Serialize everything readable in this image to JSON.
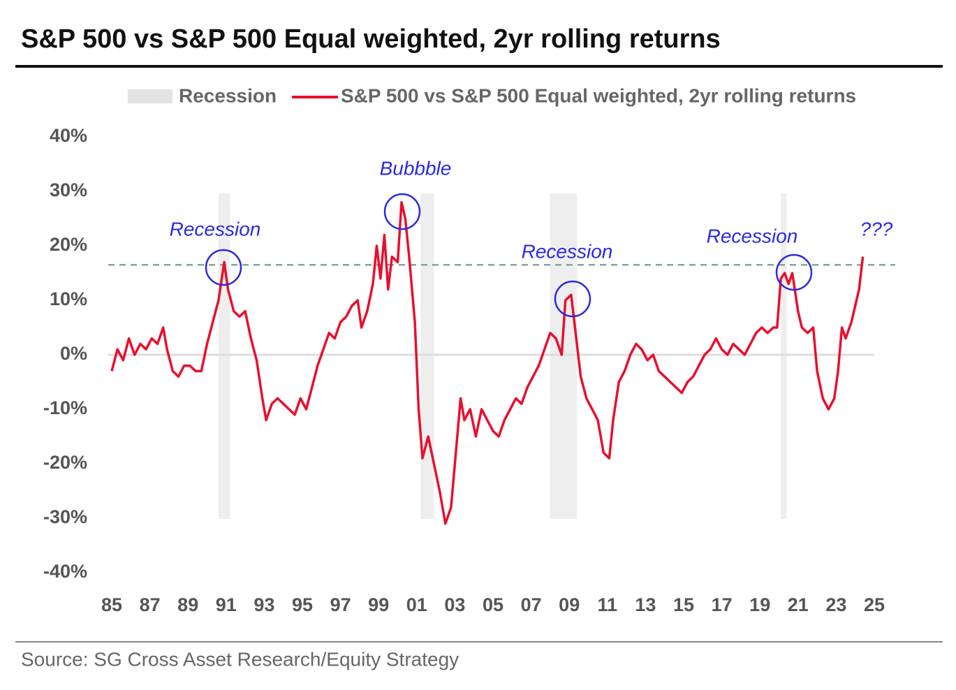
{
  "chart_data": {
    "type": "line",
    "title": "S&P 500 vs S&P 500 Equal weighted, 2yr rolling returns",
    "source": "Source: SG Cross Asset Research/Equity Strategy",
    "recession_label": "Recession",
    "recession_color": "#e3e3e3",
    "recessions": [
      [
        1990.6,
        1991.2
      ],
      [
        2001.2,
        2001.9
      ],
      [
        2008.0,
        2009.4
      ],
      [
        2020.1,
        2020.4
      ]
    ],
    "reference_line": 16.5,
    "reference_color": "#7fa79a",
    "annotations": [
      "Recession",
      "Bubbble",
      "Recession",
      "Recession",
      "???"
    ],
    "annotation_color": "#2a2ae0",
    "xlim": [
      1985,
      2025
    ],
    "ylim": [
      -40,
      40
    ],
    "xticks": [
      {
        "value": 1985,
        "label": "85"
      },
      {
        "value": 1987,
        "label": "87"
      },
      {
        "value": 1989,
        "label": "89"
      },
      {
        "value": 1991,
        "label": "91"
      },
      {
        "value": 1993,
        "label": "93"
      },
      {
        "value": 1995,
        "label": "95"
      },
      {
        "value": 1997,
        "label": "97"
      },
      {
        "value": 1999,
        "label": "99"
      },
      {
        "value": 2001,
        "label": "01"
      },
      {
        "value": 2003,
        "label": "03"
      },
      {
        "value": 2005,
        "label": "05"
      },
      {
        "value": 2007,
        "label": "07"
      },
      {
        "value": 2009,
        "label": "09"
      },
      {
        "value": 2011,
        "label": "11"
      },
      {
        "value": 2013,
        "label": "13"
      },
      {
        "value": 2015,
        "label": "15"
      },
      {
        "value": 2017,
        "label": "17"
      },
      {
        "value": 2019,
        "label": "19"
      },
      {
        "value": 2021,
        "label": "21"
      },
      {
        "value": 2023,
        "label": "23"
      },
      {
        "value": 2025,
        "label": "25"
      }
    ],
    "yticks": [
      {
        "value": 40,
        "label": "40%"
      },
      {
        "value": 30,
        "label": "30%"
      },
      {
        "value": 20,
        "label": "20%"
      },
      {
        "value": 10,
        "label": "10%"
      },
      {
        "value": 0,
        "label": "0%"
      },
      {
        "value": -10,
        "label": "-10%"
      },
      {
        "value": -20,
        "label": "-20%"
      },
      {
        "value": -30,
        "label": "-30%"
      },
      {
        "value": -40,
        "label": "-40%"
      }
    ],
    "series": [
      {
        "name": "S&P 500 vs S&P 500 Equal weighted, 2yr rolling returns",
        "color": "#e8102e",
        "x": [
          1985.0,
          1985.3,
          1985.6,
          1985.9,
          1986.2,
          1986.5,
          1986.8,
          1987.1,
          1987.4,
          1987.7,
          1987.9,
          1988.2,
          1988.5,
          1988.8,
          1989.1,
          1989.4,
          1989.7,
          1990.0,
          1990.3,
          1990.6,
          1990.9,
          1991.1,
          1991.4,
          1991.7,
          1992.0,
          1992.3,
          1992.6,
          1992.9,
          1993.1,
          1993.4,
          1993.7,
          1994.0,
          1994.3,
          1994.6,
          1994.9,
          1995.2,
          1995.5,
          1995.8,
          1996.1,
          1996.4,
          1996.7,
          1997.0,
          1997.3,
          1997.6,
          1997.9,
          1998.1,
          1998.4,
          1998.7,
          1998.9,
          1999.1,
          1999.3,
          1999.5,
          1999.7,
          2000.0,
          2000.2,
          2000.4,
          2000.6,
          2000.9,
          2001.1,
          2001.3,
          2001.6,
          2001.9,
          2002.2,
          2002.5,
          2002.8,
          2003.0,
          2003.3,
          2003.5,
          2003.8,
          2004.1,
          2004.4,
          2004.7,
          2005.0,
          2005.3,
          2005.6,
          2005.9,
          2006.2,
          2006.5,
          2006.8,
          2007.1,
          2007.4,
          2007.7,
          2008.0,
          2008.3,
          2008.6,
          2008.8,
          2009.1,
          2009.3,
          2009.6,
          2009.9,
          2010.2,
          2010.5,
          2010.8,
          2011.1,
          2011.3,
          2011.6,
          2011.9,
          2012.2,
          2012.5,
          2012.8,
          2013.1,
          2013.4,
          2013.7,
          2014.0,
          2014.3,
          2014.6,
          2014.9,
          2015.2,
          2015.5,
          2015.8,
          2016.1,
          2016.4,
          2016.7,
          2017.0,
          2017.3,
          2017.6,
          2017.9,
          2018.2,
          2018.5,
          2018.8,
          2019.1,
          2019.4,
          2019.7,
          2019.9,
          2020.1,
          2020.3,
          2020.5,
          2020.7,
          2021.0,
          2021.2,
          2021.5,
          2021.8,
          2022.0,
          2022.3,
          2022.6,
          2022.9,
          2023.1,
          2023.3,
          2023.5,
          2023.8,
          2024.0,
          2024.2,
          2024.4
        ],
        "values": [
          -3,
          1,
          -1,
          3,
          0,
          2,
          1,
          3,
          2,
          5,
          1,
          -3,
          -4,
          -2,
          -2,
          -3,
          -3,
          2,
          6,
          10,
          17,
          12,
          8,
          7,
          8,
          3,
          -1,
          -8,
          -12,
          -9,
          -8,
          -9,
          -10,
          -11,
          -8,
          -10,
          -6,
          -2,
          1,
          4,
          3,
          6,
          7,
          9,
          10,
          5,
          8,
          13,
          20,
          14,
          22,
          12,
          18,
          17,
          28,
          25,
          18,
          6,
          -10,
          -19,
          -15,
          -20,
          -25,
          -31,
          -28,
          -20,
          -8,
          -12,
          -10,
          -15,
          -10,
          -12,
          -14,
          -15,
          -12,
          -10,
          -8,
          -9,
          -6,
          -4,
          -2,
          1,
          4,
          3,
          0,
          10,
          11,
          5,
          -4,
          -8,
          -10,
          -12,
          -18,
          -19,
          -12,
          -5,
          -3,
          0,
          2,
          1,
          -1,
          0,
          -3,
          -4,
          -5,
          -6,
          -7,
          -5,
          -4,
          -2,
          0,
          1,
          3,
          1,
          0,
          2,
          1,
          0,
          2,
          4,
          5,
          4,
          5,
          5,
          14,
          15,
          13,
          15,
          8,
          5,
          4,
          5,
          -3,
          -8,
          -10,
          -8,
          -3,
          5,
          3,
          6,
          9,
          12,
          18
        ]
      }
    ]
  }
}
